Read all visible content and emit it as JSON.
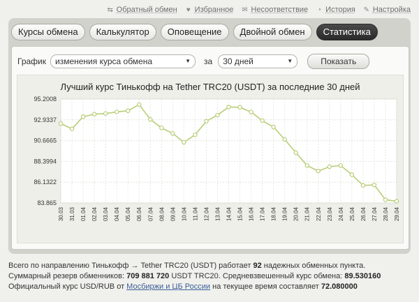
{
  "top_links": [
    {
      "icon": "exchange-arrows-icon",
      "label": "Обратный обмен"
    },
    {
      "icon": "heart-icon",
      "label": "Избранное"
    },
    {
      "icon": "envelope-icon",
      "label": "Несоответствие"
    },
    {
      "icon": "history-icon",
      "label": "История"
    },
    {
      "icon": "wrench-icon",
      "label": "Настройка"
    }
  ],
  "tabs": [
    {
      "label": "Курсы обмена",
      "active": false
    },
    {
      "label": "Калькулятор",
      "active": false
    },
    {
      "label": "Оповещение",
      "active": false
    },
    {
      "label": "Двойной обмен",
      "active": false
    },
    {
      "label": "Статистика",
      "active": true
    }
  ],
  "controls": {
    "graph_label": "График",
    "graph_type": "изменения курса обмена",
    "period_label": "за",
    "period": "30 дней",
    "show_button": "Показать"
  },
  "chart_data": {
    "type": "line",
    "title": "Лучший курс Тинькофф на Tether TRC20 (USDT) за последние 30 дней",
    "xlabel": "",
    "ylabel": "",
    "ylim": [
      83.865,
      95.2008
    ],
    "yticks": [
      "95.2008",
      "92.9337",
      "90.6665",
      "88.3994",
      "86.1322",
      "83.865"
    ],
    "categories": [
      "30.03",
      "31.03",
      "01.04",
      "02.04",
      "03.04",
      "04.04",
      "05.04",
      "06.04",
      "07.04",
      "08.04",
      "09.04",
      "10.04",
      "11.04",
      "12.04",
      "13.04",
      "14.04",
      "15.04",
      "16.04",
      "17.04",
      "18.04",
      "19.04",
      "20.04",
      "21.04",
      "22.04",
      "23.04",
      "24.04",
      "25.04",
      "26.04",
      "27.04",
      "28.04",
      "29.04"
    ],
    "series": [
      {
        "values": [
          92.53,
          91.95,
          93.28,
          93.55,
          93.62,
          93.8,
          93.92,
          94.6,
          92.98,
          92.05,
          91.45,
          90.48,
          91.3,
          92.78,
          93.45,
          94.33,
          94.3,
          93.78,
          92.85,
          92.15,
          90.8,
          89.35,
          87.95,
          87.35,
          87.82,
          87.95,
          86.95,
          85.78,
          85.83,
          84.22,
          84.05
        ]
      }
    ],
    "grid": true,
    "line_color": "#b8cd78",
    "marker_fill": "#ffffff"
  },
  "info": {
    "line1_pre": "Всего по направлению Тинькофф → Tether TRC20 (USDT) работает",
    "line1_count": "92",
    "line1_post": "надежных обменных пункта.",
    "line2_pre": "Суммарный резерв обменников:",
    "line2_reserve": "709 881 720",
    "line2_mid": "USDT TRC20. Средневзвешенный курс обмена:",
    "line2_rate": "89.530160",
    "line3_pre": "Официальный курс USD/RUB от",
    "line3_link": "Мосбиржи и ЦБ России",
    "line3_mid": "на текущее время составляет",
    "line3_rate": "72.080000"
  }
}
